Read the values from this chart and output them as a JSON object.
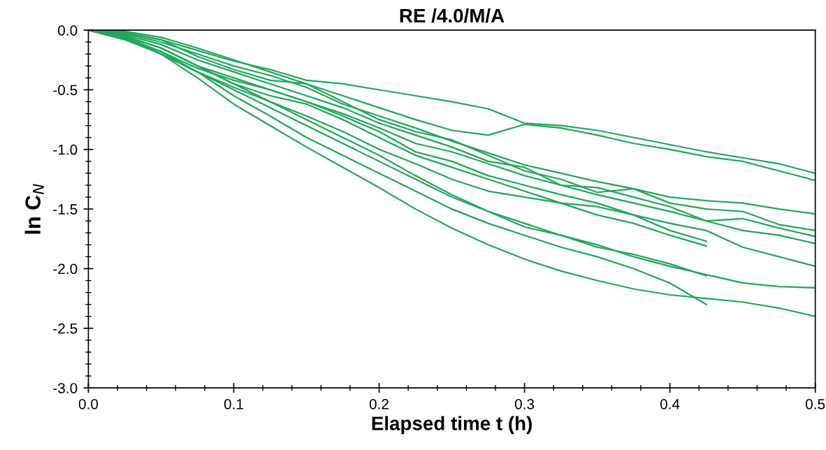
{
  "chart_data": {
    "type": "line",
    "title": "RE /4.0/M/A",
    "xlabel": "Elapsed time t (h)",
    "ylabel": "ln C$_{N}$",
    "x": [
      0,
      0.025,
      0.05,
      0.075,
      0.1,
      0.125,
      0.15,
      0.175,
      0.2,
      0.225,
      0.25,
      0.275,
      0.3,
      0.325,
      0.35,
      0.375,
      0.4,
      0.425,
      0.45,
      0.475,
      0.5
    ],
    "xlim": [
      0,
      0.5
    ],
    "xticks": [
      {
        "value": 0,
        "label": "0.0"
      },
      0.1,
      0.2,
      0.3,
      0.4,
      0.5
    ],
    "ylim": [
      -3,
      0
    ],
    "yticks": [
      {
        "value": -3,
        "label": "-3.0"
      },
      -2.5,
      {
        "value": -2,
        "label": "-2.0"
      },
      -1.5,
      {
        "value": -1,
        "label": "-1.0"
      },
      -0.5,
      {
        "value": 0,
        "label": "0.0"
      }
    ],
    "grid": false,
    "marker": "none",
    "line_style": "solid",
    "series": [
      {
        "color": "#1fa85a",
        "values": [
          0,
          -0.02,
          -0.08,
          -0.17,
          -0.26,
          -0.33,
          -0.42,
          -0.45,
          -0.5,
          -0.55,
          -0.6,
          -0.66,
          -0.78,
          -0.8,
          -0.84,
          -0.9,
          -0.96,
          -1.02,
          -1.07,
          -1.12,
          -1.2
        ]
      },
      {
        "color": "#1fa85a",
        "values": [
          0,
          -0.01,
          -0.06,
          -0.15,
          -0.25,
          -0.35,
          -0.45,
          -0.55,
          -0.65,
          -0.75,
          -0.84,
          -0.88,
          -0.79,
          -0.82,
          -0.88,
          -0.95,
          -1.0,
          -1.06,
          -1.1,
          -1.18,
          -1.26
        ]
      },
      {
        "color": "#1fa85a",
        "values": [
          0,
          -0.03,
          -0.1,
          -0.2,
          -0.3,
          -0.38,
          -0.48,
          -0.62,
          -0.72,
          -0.82,
          -0.93,
          -1.03,
          -1.13,
          -1.2,
          -1.27,
          -1.33,
          -1.4,
          -1.43,
          -1.45,
          -1.5,
          -1.54
        ]
      },
      {
        "color": "#1fa85a",
        "values": [
          0,
          -0.02,
          -0.08,
          -0.22,
          -0.33,
          -0.42,
          -0.45,
          -0.6,
          -0.75,
          -0.85,
          -0.92,
          -1.05,
          -1.18,
          -1.25,
          -1.36,
          -1.33,
          -1.45,
          -1.5,
          -1.52,
          -1.63,
          -1.68
        ]
      },
      {
        "color": "#1fa85a",
        "values": [
          0,
          -0.04,
          -0.12,
          -0.25,
          -0.35,
          -0.45,
          -0.55,
          -0.65,
          -0.78,
          -0.88,
          -0.98,
          -1.1,
          -1.15,
          -1.3,
          -1.32,
          -1.4,
          -1.48,
          -1.6,
          -1.58,
          -1.66,
          -1.73
        ]
      },
      {
        "color": "#1fa85a",
        "values": [
          0,
          -0.05,
          -0.15,
          -0.3,
          -0.4,
          -0.5,
          -0.6,
          -0.7,
          -0.82,
          -0.95,
          -1.02,
          -1.12,
          -1.22,
          -1.3,
          -1.38,
          -1.45,
          -1.52,
          -1.6,
          -1.68,
          -1.72,
          -1.79
        ]
      },
      {
        "color": "#1fa85a",
        "values": [
          0,
          -0.06,
          -0.18,
          -0.32,
          -0.42,
          -0.5,
          -0.6,
          -0.72,
          -0.85,
          -1.02,
          -1.1,
          -1.22,
          -1.3,
          -1.38,
          -1.45,
          -1.55,
          -1.68,
          -1.77,
          null,
          null,
          null
        ]
      },
      {
        "color": "#1fa85a",
        "values": [
          0,
          -0.05,
          -0.15,
          -0.3,
          -0.45,
          -0.55,
          -0.62,
          -0.75,
          -0.9,
          -1.05,
          -1.15,
          -1.25,
          -1.35,
          -1.45,
          -1.55,
          -1.62,
          -1.72,
          -1.81,
          null,
          null,
          null
        ]
      },
      {
        "color": "#1fa85a",
        "values": [
          0,
          -0.07,
          -0.2,
          -0.35,
          -0.48,
          -0.6,
          -0.72,
          -0.85,
          -1.0,
          -1.12,
          -1.25,
          -1.35,
          -1.4,
          -1.45,
          -1.48,
          -1.55,
          -1.62,
          -1.68,
          -1.82,
          -1.9,
          -1.98
        ]
      },
      {
        "color": "#1fa85a",
        "values": [
          0,
          -0.08,
          -0.2,
          -0.35,
          -0.5,
          -0.65,
          -0.8,
          -0.95,
          -1.1,
          -1.25,
          -1.4,
          -1.52,
          -1.65,
          -1.72,
          -1.8,
          -1.9,
          -1.98,
          -2.05,
          -2.12,
          -2.15,
          -2.16
        ]
      },
      {
        "color": "#1fa85a",
        "values": [
          0,
          -0.05,
          -0.15,
          -0.3,
          -0.45,
          -0.6,
          -0.75,
          -0.9,
          -1.05,
          -1.22,
          -1.38,
          -1.52,
          -1.62,
          -1.72,
          -1.82,
          -1.88,
          -1.96,
          -2.06,
          null,
          null,
          null
        ]
      },
      {
        "color": "#1fa85a",
        "values": [
          0,
          -0.06,
          -0.18,
          -0.35,
          -0.55,
          -0.72,
          -0.9,
          -1.05,
          -1.2,
          -1.35,
          -1.5,
          -1.62,
          -1.72,
          -1.82,
          -1.9,
          -2.0,
          -2.12,
          -2.3,
          null,
          null,
          null
        ]
      },
      {
        "color": "#1fa85a",
        "values": [
          0,
          -0.05,
          -0.2,
          -0.4,
          -0.62,
          -0.8,
          -0.98,
          -1.15,
          -1.32,
          -1.5,
          -1.66,
          -1.8,
          -1.92,
          -2.02,
          -2.1,
          -2.17,
          -2.22,
          -2.25,
          -2.28,
          -2.33,
          -2.4
        ]
      }
    ]
  }
}
